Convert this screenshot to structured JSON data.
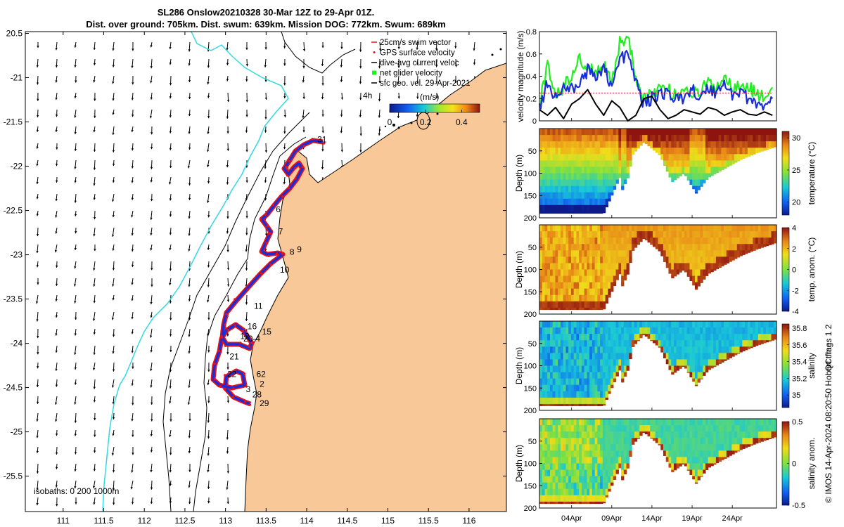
{
  "title": {
    "line1": "SL286 Onslow20210328 30-Mar 12Z to 29-Apr 01Z.",
    "line2": "Dist. over ground: 705km. Dist. swum: 639km. Mission DOG: 772km. Swum: 689km"
  },
  "colors": {
    "land": "#f9c898",
    "track_red": "#e8121a",
    "track_blue": "#1a2ed8",
    "coast_line": "#000000",
    "isobath_200": "#000000",
    "isobath_1000": "#33d9e0",
    "gps_green": "#22ee22"
  },
  "map": {
    "lon_ticks": [
      "111",
      "111.5",
      "112",
      "112.5",
      "113",
      "113.5",
      "114",
      "114.5",
      "115",
      "115.5",
      "116"
    ],
    "lat_ticks": [
      "20.5",
      "-21",
      "-21.5",
      "-22",
      "-22.5",
      "-23",
      "-23.5",
      "-24",
      "-24.5",
      "-25",
      "-25.5"
    ],
    "legend": [
      {
        "label": "25cm/s swim vector",
        "color": "#e8121a",
        "marker": "line"
      },
      {
        "label": "GPS surface velocity",
        "color": "#e8121a",
        "marker": "dot"
      },
      {
        "label": "dive-avg current veloc",
        "color": "#000000",
        "marker": "line"
      },
      {
        "label": "net glider velocity",
        "color": "#22ee22",
        "marker": "square"
      },
      {
        "label": "sfc geo. vel. 29-Apr-2021",
        "color": "#000000",
        "marker": "line"
      }
    ],
    "colorbar": {
      "label": "(m/s)",
      "ticks": [
        "0",
        "0.2",
        "0.4"
      ]
    },
    "isobaths_label": "isobaths: 0   200  1000m",
    "scale_label": "4h",
    "day_labels": [
      {
        "text": "31",
        "lon": 114.13,
        "lat": -21.73
      },
      {
        "text": "6",
        "lon": 113.62,
        "lat": -22.52
      },
      {
        "text": "7",
        "lon": 113.65,
        "lat": -22.77
      },
      {
        "text": "9",
        "lon": 113.88,
        "lat": -22.97
      },
      {
        "text": "8",
        "lon": 113.79,
        "lat": -23.0
      },
      {
        "text": "10",
        "lon": 113.67,
        "lat": -23.2
      },
      {
        "text": "11",
        "lon": 113.35,
        "lat": -23.61
      },
      {
        "text": "16",
        "lon": 113.27,
        "lat": -23.84
      },
      {
        "text": "15",
        "lon": 113.45,
        "lat": -23.9
      },
      {
        "text": "12",
        "lon": 113.18,
        "lat": -23.95
      },
      {
        "text": "20-4",
        "lon": 113.22,
        "lat": -23.98
      },
      {
        "text": "21",
        "lon": 113.05,
        "lat": -24.18
      },
      {
        "text": "22",
        "lon": 113.02,
        "lat": -24.38
      },
      {
        "text": "62",
        "lon": 113.38,
        "lat": -24.38
      },
      {
        "text": "2",
        "lon": 113.42,
        "lat": -24.49
      },
      {
        "text": "3",
        "lon": 113.25,
        "lat": -24.55
      },
      {
        "text": "28",
        "lon": 113.33,
        "lat": -24.61
      },
      {
        "text": "29",
        "lon": 113.42,
        "lat": -24.71
      }
    ]
  },
  "chart_data": [
    {
      "type": "line",
      "ylabel": "velocity magnitude (m/s)",
      "ylim": [
        0,
        0.8
      ],
      "y_ticks": [
        "0",
        "0.2",
        "0.4",
        "0.6",
        "0.8"
      ],
      "xlim_days": [
        0,
        29.5
      ],
      "series": [
        {
          "color": "#22ee22",
          "x": [
            0,
            1,
            2,
            3,
            4,
            5,
            6,
            7,
            8,
            9,
            10,
            11,
            12,
            13,
            14,
            15,
            16,
            17,
            18,
            19,
            20,
            21,
            22,
            23,
            24,
            25,
            26,
            27,
            28,
            29
          ],
          "values": [
            0.15,
            0.5,
            0.25,
            0.3,
            0.42,
            0.55,
            0.48,
            0.45,
            0.52,
            0.35,
            0.7,
            0.75,
            0.4,
            0.2,
            0.25,
            0.3,
            0.28,
            0.22,
            0.3,
            0.25,
            0.25,
            0.35,
            0.3,
            0.4,
            0.3,
            0.35,
            0.3,
            0.25,
            0.2,
            0.3
          ]
        },
        {
          "color": "#1a2ed8",
          "x": [
            0,
            1,
            2,
            3,
            4,
            5,
            6,
            7,
            8,
            9,
            10,
            11,
            12,
            13,
            14,
            15,
            16,
            17,
            18,
            19,
            20,
            21,
            22,
            23,
            24,
            25,
            26,
            27,
            28,
            29
          ],
          "values": [
            0.1,
            0.35,
            0.2,
            0.3,
            0.28,
            0.35,
            0.45,
            0.38,
            0.5,
            0.3,
            0.55,
            0.6,
            0.35,
            0.15,
            0.2,
            0.25,
            0.25,
            0.18,
            0.22,
            0.3,
            0.18,
            0.3,
            0.25,
            0.35,
            0.22,
            0.28,
            0.2,
            0.15,
            0.12,
            0.2
          ]
        },
        {
          "color": "#e8121a",
          "x": [
            0,
            29
          ],
          "values": [
            0.25,
            0.25
          ]
        },
        {
          "color": "#000000",
          "x": [
            0,
            1,
            2,
            3,
            4,
            5,
            6,
            7,
            8,
            9,
            10,
            11,
            12,
            13,
            14,
            15,
            16,
            17,
            18,
            19,
            20,
            21,
            22,
            23,
            24,
            25,
            26,
            27,
            28,
            29
          ],
          "values": [
            0.1,
            0.05,
            0.12,
            0.02,
            0.15,
            0.2,
            0.28,
            0.15,
            0.05,
            0.18,
            0.12,
            0.0,
            0.05,
            0.2,
            0.22,
            0.1,
            0.02,
            0.05,
            0.1,
            0.08,
            0.06,
            0.12,
            0.1,
            0.05,
            0.08,
            0.1,
            0.06,
            0.05,
            0.08,
            0.05
          ]
        }
      ]
    },
    {
      "type": "heatmap",
      "variable": "temperature",
      "ylabel": "Depth (m)",
      "colorbar_label": "temperature (°C)",
      "colorbar_ticks": [
        "20",
        "25",
        "30"
      ],
      "clim": [
        18,
        31
      ],
      "ylim": [
        0,
        200
      ],
      "y_ticks": [
        "50",
        "100",
        "150",
        "200"
      ]
    },
    {
      "type": "heatmap",
      "variable": "temp. anomaly",
      "ylabel": "Depth (m)",
      "colorbar_label": "temp. anom. (°C)",
      "colorbar_ticks": [
        "-4",
        "-2",
        "0",
        "2",
        "4"
      ],
      "clim": [
        -4,
        4
      ],
      "ylim": [
        0,
        200
      ],
      "y_ticks": [
        "50",
        "100",
        "150",
        "200"
      ]
    },
    {
      "type": "heatmap",
      "variable": "salinity",
      "ylabel": "Depth (m)",
      "colorbar_label": "salinity",
      "colorbar_ticks": [
        "35",
        "35.2",
        "35.4",
        "35.6",
        "35.8"
      ],
      "clim": [
        34.85,
        35.85
      ],
      "ylim": [
        0,
        200
      ],
      "y_ticks": [
        "50",
        "100",
        "150",
        "200"
      ]
    },
    {
      "type": "heatmap",
      "variable": "salinity anomaly",
      "ylabel": "Depth (m)",
      "colorbar_label": "salinity anom.",
      "colorbar_ticks": [
        "-0.5",
        "0",
        "0.5"
      ],
      "clim": [
        -0.5,
        0.5
      ],
      "ylim": [
        0,
        200
      ],
      "y_ticks": [
        "50",
        "100",
        "150",
        "200"
      ],
      "x_ticks": [
        "04Apr",
        "09Apr",
        "14Apr",
        "19Apr",
        "24Apr"
      ]
    }
  ],
  "side_text": {
    "qc_flags": "QC flags 1  2",
    "credit": "© IMOS 14-Apr-2024 08:20:50 Hobart time."
  }
}
